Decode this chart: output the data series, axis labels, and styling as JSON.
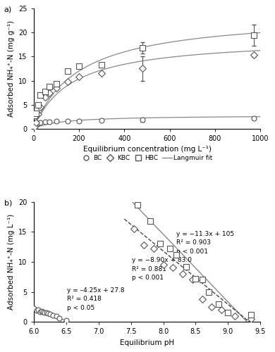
{
  "panel_a": {
    "BC_x": [
      5,
      10,
      20,
      30,
      50,
      70,
      100,
      150,
      200,
      300,
      480,
      970
    ],
    "BC_y": [
      0.3,
      0.7,
      1.1,
      1.3,
      1.4,
      1.4,
      1.5,
      1.6,
      1.6,
      1.7,
      1.8,
      2.2
    ],
    "BC_yerr": [
      null,
      null,
      null,
      null,
      null,
      null,
      null,
      null,
      null,
      null,
      0.4,
      0.3
    ],
    "KBC_x": [
      5,
      10,
      20,
      30,
      50,
      70,
      100,
      150,
      200,
      300,
      480,
      970
    ],
    "KBC_y": [
      0.4,
      1.2,
      3.0,
      4.5,
      6.5,
      7.5,
      8.5,
      9.8,
      10.8,
      11.5,
      12.5,
      15.3
    ],
    "KBC_yerr": [
      null,
      null,
      null,
      null,
      null,
      null,
      null,
      null,
      null,
      null,
      2.5,
      0.4
    ],
    "HBC_x": [
      5,
      10,
      20,
      30,
      50,
      70,
      100,
      150,
      200,
      300,
      480,
      970
    ],
    "HBC_y": [
      2.8,
      3.2,
      5.0,
      7.0,
      7.8,
      8.7,
      9.3,
      12.0,
      13.0,
      13.3,
      16.8,
      19.5
    ],
    "HBC_yerr": [
      null,
      null,
      null,
      null,
      null,
      null,
      null,
      null,
      null,
      null,
      1.2,
      2.2
    ],
    "langmuir_BC_params": {
      "qmax": 2.8,
      "KL": 0.008
    },
    "langmuir_KBC_params": {
      "qmax": 19.0,
      "KL": 0.006
    },
    "langmuir_HBC_params": {
      "qmax": 24.0,
      "KL": 0.005
    },
    "xlabel": "Equilibrium concentration (mg L⁻¹)",
    "ylabel": "Adsorbed NH₄⁺-N (mg g⁻¹)",
    "xlim": [
      0,
      1000
    ],
    "ylim": [
      0,
      25
    ],
    "yticks": [
      0,
      5,
      10,
      15,
      20,
      25
    ],
    "xticks": [
      0,
      200,
      400,
      600,
      800,
      1000
    ]
  },
  "panel_b": {
    "BC_x": [
      6.0,
      6.05,
      6.07,
      6.1,
      6.12,
      6.15,
      6.17,
      6.2,
      6.22,
      6.25,
      6.3,
      6.35,
      6.4,
      6.5
    ],
    "BC_y": [
      2.2,
      1.9,
      2.0,
      1.7,
      1.8,
      1.6,
      1.5,
      1.5,
      1.4,
      1.3,
      1.1,
      0.9,
      0.6,
      0.2
    ],
    "KBC_x": [
      7.55,
      7.7,
      7.85,
      8.0,
      8.15,
      8.3,
      8.45,
      8.6,
      8.75,
      8.9,
      9.1,
      9.35
    ],
    "KBC_y": [
      15.5,
      12.8,
      12.2,
      9.5,
      9.0,
      8.0,
      7.0,
      3.8,
      2.5,
      2.0,
      1.0,
      0.5
    ],
    "HBC_x": [
      7.6,
      7.8,
      7.95,
      8.1,
      8.2,
      8.35,
      8.5,
      8.6,
      8.7,
      8.85,
      9.0,
      9.35
    ],
    "HBC_y": [
      19.5,
      16.8,
      13.0,
      12.2,
      11.2,
      9.2,
      7.2,
      7.0,
      5.0,
      3.0,
      1.5,
      1.2
    ],
    "BC_line_x": [
      6.0,
      6.55
    ],
    "BC_line_slope": -4.25,
    "BC_line_intercept": 27.8,
    "KBC_line_x": [
      7.4,
      9.42
    ],
    "KBC_line_slope": -8.9,
    "KBC_line_intercept": 83.0,
    "HBC_line_x": [
      7.4,
      9.42
    ],
    "HBC_line_slope": -11.3,
    "HBC_line_intercept": 105.0,
    "xlabel": "Equilibrium pH",
    "ylabel": "Adsorbed NH₄⁺-N (mg L⁻¹)",
    "xlim": [
      6.0,
      9.5
    ],
    "ylim": [
      0,
      20
    ],
    "yticks": [
      0,
      5,
      10,
      15,
      20
    ],
    "xticks": [
      6.0,
      6.5,
      7.0,
      7.5,
      8.0,
      8.5,
      9.0,
      9.5
    ],
    "ann_BC_x": 6.52,
    "ann_BC_y": 5.8,
    "ann_BC": "y = –4.25x + 27.8\nR² = 0.418\np < 0.05",
    "ann_KBC_x": 7.52,
    "ann_KBC_y": 10.8,
    "ann_KBC": "y = −8.90x + 83.0\nR² = 0.881\np < 0.001",
    "ann_HBC_x": 8.2,
    "ann_HBC_y": 15.2,
    "ann_HBC": "y = −11.3x + 105\nR² = 0.903\np < 0.001"
  },
  "marker_size": 5,
  "line_color": "#888888",
  "marker_color": "#555555",
  "font_size": 7,
  "label_font_size": 7.5,
  "tick_font_size": 7
}
